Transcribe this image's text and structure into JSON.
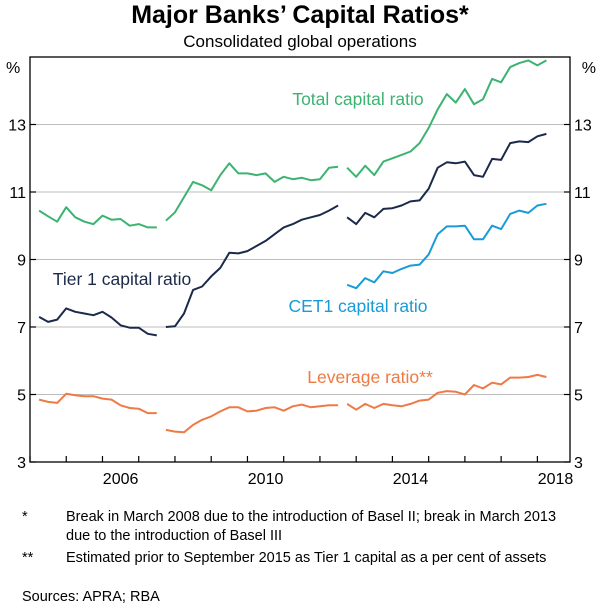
{
  "title": "Major Banks’ Capital Ratios*",
  "subtitle": "Consolidated global operations",
  "colors": {
    "total": "#3cb371",
    "tier1": "#1b2a4a",
    "cet1": "#1a9bd7",
    "leverage": "#ee7a45"
  },
  "chart_data": {
    "type": "line",
    "title": "Major Banks’ Capital Ratios*",
    "subtitle": "Consolidated global operations",
    "unit_left": "%",
    "unit_right": "%",
    "xlim": [
      2004.0,
      2018.9
    ],
    "ylim": [
      3,
      15
    ],
    "yticks": [
      3,
      5,
      7,
      9,
      11,
      13
    ],
    "xticks": [
      2006,
      2010,
      2014,
      2018
    ],
    "xtick_labels": [
      "2006",
      "2010",
      "2014",
      "2018"
    ],
    "gridlines": true,
    "series": [
      {
        "name": "Total capital ratio",
        "key": "total",
        "segments": [
          {
            "x": [
              2004.25,
              2004.5,
              2004.75,
              2005.0,
              2005.25,
              2005.5,
              2005.75,
              2006.0,
              2006.25,
              2006.5,
              2006.75,
              2007.0,
              2007.25,
              2007.5
            ],
            "y": [
              10.45,
              10.28,
              10.12,
              10.55,
              10.25,
              10.12,
              10.05,
              10.3,
              10.18,
              10.2,
              10.0,
              10.05,
              9.95,
              9.95
            ]
          },
          {
            "x": [
              2007.75,
              2008.0,
              2008.25,
              2008.5,
              2008.75,
              2009.0,
              2009.25,
              2009.5,
              2009.75,
              2010.0,
              2010.25,
              2010.5,
              2010.75,
              2011.0,
              2011.25,
              2011.5,
              2011.75,
              2012.0,
              2012.25,
              2012.5
            ],
            "y": [
              10.15,
              10.4,
              10.85,
              11.3,
              11.2,
              11.05,
              11.5,
              11.85,
              11.55,
              11.55,
              11.5,
              11.55,
              11.3,
              11.45,
              11.38,
              11.42,
              11.35,
              11.38,
              11.72,
              11.75
            ]
          },
          {
            "x": [
              2012.75,
              2013.0,
              2013.25,
              2013.5,
              2013.75,
              2014.0,
              2014.25,
              2014.5,
              2014.75,
              2015.0,
              2015.25,
              2015.5,
              2015.75,
              2016.0,
              2016.25,
              2016.5,
              2016.75,
              2017.0,
              2017.25,
              2017.5,
              2017.75,
              2018.0,
              2018.25
            ],
            "y": [
              11.72,
              11.45,
              11.78,
              11.5,
              11.9,
              12.0,
              12.1,
              12.2,
              12.45,
              12.9,
              13.45,
              13.9,
              13.65,
              14.05,
              13.6,
              13.75,
              14.35,
              14.25,
              14.7,
              14.82,
              14.9,
              14.75,
              14.9
            ]
          }
        ]
      },
      {
        "name": "Tier 1 capital ratio",
        "key": "tier1",
        "segments": [
          {
            "x": [
              2004.25,
              2004.5,
              2004.75,
              2005.0,
              2005.25,
              2005.5,
              2005.75,
              2006.0,
              2006.25,
              2006.5,
              2006.75,
              2007.0,
              2007.25,
              2007.5
            ],
            "y": [
              7.3,
              7.15,
              7.22,
              7.55,
              7.45,
              7.4,
              7.35,
              7.45,
              7.28,
              7.05,
              6.98,
              6.98,
              6.8,
              6.75
            ]
          },
          {
            "x": [
              2007.75,
              2008.0,
              2008.25,
              2008.5,
              2008.75,
              2009.0,
              2009.25,
              2009.5,
              2009.75,
              2010.0,
              2010.25,
              2010.5,
              2010.75,
              2011.0,
              2011.25,
              2011.5,
              2011.75,
              2012.0,
              2012.25,
              2012.5
            ],
            "y": [
              7.0,
              7.02,
              7.4,
              8.1,
              8.2,
              8.5,
              8.75,
              9.2,
              9.18,
              9.25,
              9.4,
              9.55,
              9.75,
              9.95,
              10.05,
              10.18,
              10.25,
              10.32,
              10.45,
              10.6
            ]
          },
          {
            "x": [
              2012.75,
              2013.0,
              2013.25,
              2013.5,
              2013.75,
              2014.0,
              2014.25,
              2014.5,
              2014.75,
              2015.0,
              2015.25,
              2015.5,
              2015.75,
              2016.0,
              2016.25,
              2016.5,
              2016.75,
              2017.0,
              2017.25,
              2017.5,
              2017.75,
              2018.0,
              2018.25
            ],
            "y": [
              10.25,
              10.05,
              10.38,
              10.25,
              10.5,
              10.52,
              10.6,
              10.72,
              10.75,
              11.1,
              11.72,
              11.88,
              11.85,
              11.9,
              11.5,
              11.45,
              11.98,
              11.95,
              12.45,
              12.5,
              12.48,
              12.65,
              12.72
            ]
          }
        ]
      },
      {
        "name": "CET1 capital ratio",
        "key": "cet1",
        "segments": [
          {
            "x": [
              2012.75,
              2013.0,
              2013.25,
              2013.5,
              2013.75,
              2014.0,
              2014.25,
              2014.5,
              2014.75,
              2015.0,
              2015.25,
              2015.5,
              2015.75,
              2016.0,
              2016.25,
              2016.5,
              2016.75,
              2017.0,
              2017.25,
              2017.5,
              2017.75,
              2018.0,
              2018.25
            ],
            "y": [
              8.25,
              8.15,
              8.45,
              8.32,
              8.65,
              8.6,
              8.72,
              8.82,
              8.85,
              9.15,
              9.75,
              9.98,
              9.98,
              10.0,
              9.6,
              9.6,
              10.0,
              9.9,
              10.35,
              10.45,
              10.38,
              10.6,
              10.65
            ]
          }
        ]
      },
      {
        "name": "Leverage ratio**",
        "key": "leverage",
        "segments": [
          {
            "x": [
              2004.25,
              2004.5,
              2004.75,
              2005.0,
              2005.25,
              2005.5,
              2005.75,
              2006.0,
              2006.25,
              2006.5,
              2006.75,
              2007.0,
              2007.25,
              2007.5
            ],
            "y": [
              4.85,
              4.78,
              4.75,
              5.02,
              4.98,
              4.95,
              4.95,
              4.88,
              4.85,
              4.68,
              4.6,
              4.58,
              4.45,
              4.45
            ]
          },
          {
            "x": [
              2007.75,
              2008.0,
              2008.25,
              2008.5,
              2008.75,
              2009.0,
              2009.25,
              2009.5,
              2009.75,
              2010.0,
              2010.25,
              2010.5,
              2010.75,
              2011.0,
              2011.25,
              2011.5,
              2011.75,
              2012.0,
              2012.25,
              2012.5
            ],
            "y": [
              3.95,
              3.9,
              3.88,
              4.1,
              4.25,
              4.35,
              4.5,
              4.62,
              4.62,
              4.5,
              4.52,
              4.6,
              4.62,
              4.52,
              4.65,
              4.7,
              4.62,
              4.65,
              4.68,
              4.68
            ]
          },
          {
            "x": [
              2012.75,
              2013.0,
              2013.25,
              2013.5,
              2013.75,
              2014.0,
              2014.25,
              2014.5,
              2014.75,
              2015.0,
              2015.25,
              2015.5,
              2015.75,
              2016.0,
              2016.25,
              2016.5,
              2016.75,
              2017.0,
              2017.25,
              2017.5,
              2017.75,
              2018.0,
              2018.25
            ],
            "y": [
              4.72,
              4.55,
              4.72,
              4.6,
              4.72,
              4.68,
              4.65,
              4.72,
              4.82,
              4.85,
              5.05,
              5.1,
              5.08,
              5.0,
              5.28,
              5.18,
              5.35,
              5.3,
              5.5,
              5.5,
              5.52,
              5.58,
              5.52
            ]
          }
        ]
      }
    ],
    "series_labels": [
      {
        "key": "total",
        "text": "Total capital ratio"
      },
      {
        "key": "tier1",
        "text": "Tier 1 capital ratio"
      },
      {
        "key": "cet1",
        "text": "CET1 capital ratio"
      },
      {
        "key": "leverage",
        "text": "Leverage ratio**"
      }
    ]
  },
  "notes": [
    {
      "mark": "*",
      "text": "Break in March 2008 due to the introduction of Basel II; break in March 2013 due to the introduction of Basel III"
    },
    {
      "mark": "**",
      "text": "Estimated prior to September 2015 as Tier 1 capital as a per cent of assets"
    }
  ],
  "source": "Sources: APRA; RBA"
}
